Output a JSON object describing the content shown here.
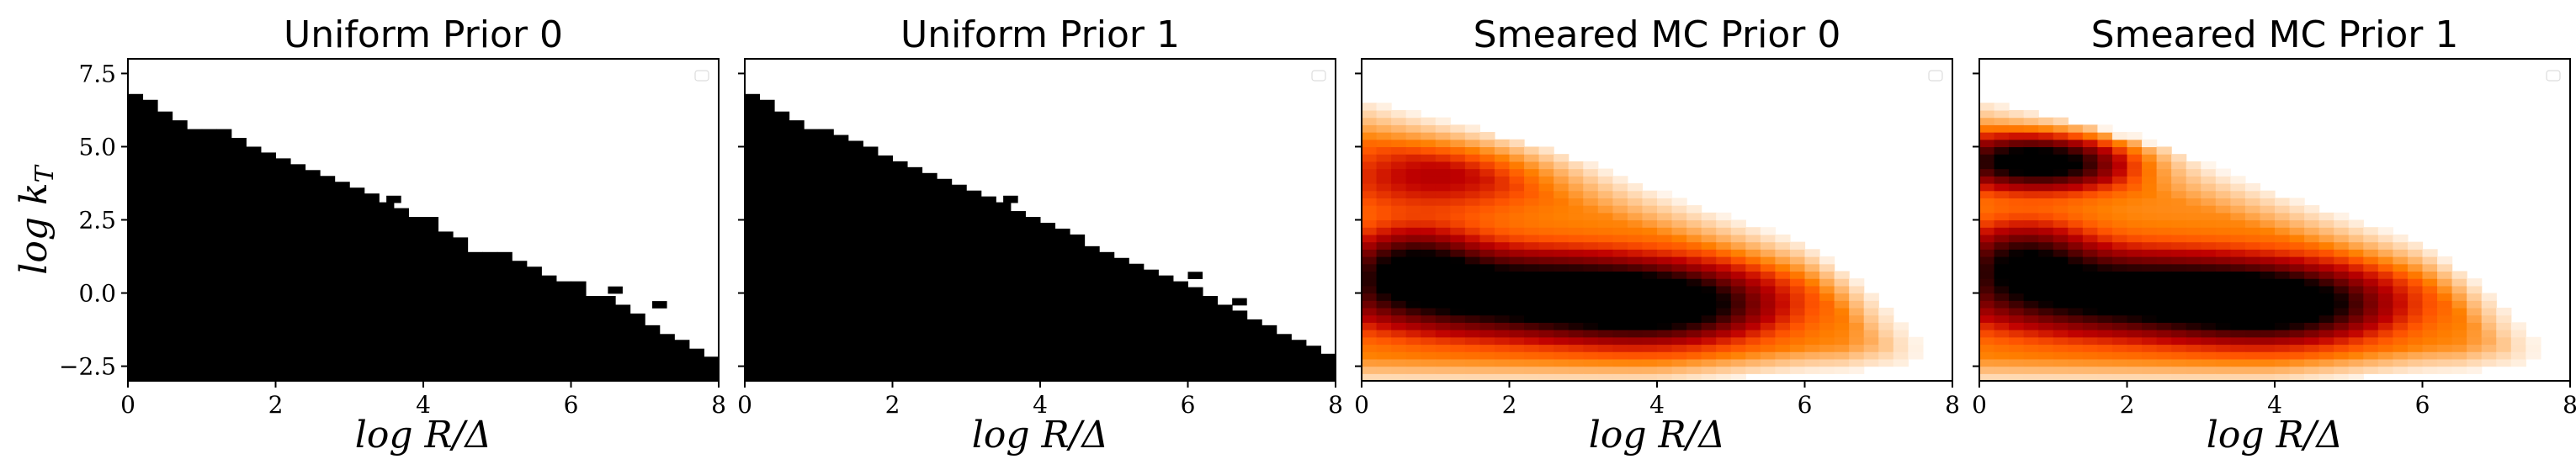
{
  "figure": {
    "ylabel": "log k_T",
    "xlabel": "log R/Δ"
  },
  "chart_data": [
    {
      "type": "heatmap",
      "title": "Uniform Prior 0",
      "xlabel": "log R/Δ",
      "ylabel": "log k_T",
      "xlim": [
        0,
        8
      ],
      "ylim": [
        -3.0,
        8.0
      ],
      "xticks": [
        0,
        2,
        4,
        6,
        8
      ],
      "yticks": [
        -2.5,
        0.0,
        2.5,
        5.0,
        7.5
      ],
      "colormap": "binary",
      "grid": false,
      "mode": "boundary",
      "boundary": {
        "x": [
          0,
          0.2,
          0.4,
          0.6,
          0.8,
          1.0,
          1.2,
          1.4,
          1.6,
          1.8,
          2.0,
          2.2,
          2.4,
          2.6,
          2.8,
          3.0,
          3.2,
          3.4,
          3.6,
          3.8,
          4.0,
          4.2,
          4.4,
          4.6,
          4.8,
          5.0,
          5.2,
          5.4,
          5.6,
          5.8,
          6.0,
          6.2,
          6.4,
          6.6,
          6.8,
          7.0,
          7.2,
          7.4,
          7.6,
          7.8
        ],
        "y": [
          6.8,
          6.6,
          6.2,
          5.9,
          5.6,
          5.6,
          5.6,
          5.3,
          5.0,
          4.8,
          4.6,
          4.4,
          4.2,
          4.0,
          3.8,
          3.6,
          3.4,
          3.1,
          2.9,
          2.6,
          2.6,
          2.1,
          1.9,
          1.4,
          1.4,
          1.4,
          1.1,
          0.9,
          0.6,
          0.4,
          0.4,
          -0.1,
          -0.1,
          -0.4,
          -0.7,
          -1.1,
          -1.4,
          -1.6,
          -1.9,
          -2.2
        ]
      },
      "islands": [
        [
          1.7,
          4.5
        ],
        [
          3.0,
          3.2
        ],
        [
          3.5,
          3.2
        ],
        [
          6.5,
          0.1
        ],
        [
          7.1,
          -0.4
        ],
        [
          7.8,
          -2.3
        ]
      ]
    },
    {
      "type": "heatmap",
      "title": "Uniform Prior 1",
      "xlabel": "log R/Δ",
      "ylabel": "log k_T",
      "xlim": [
        0,
        8
      ],
      "ylim": [
        -3.0,
        8.0
      ],
      "xticks": [
        0,
        2,
        4,
        6,
        8
      ],
      "yticks": [
        -2.5,
        0.0,
        2.5,
        5.0,
        7.5
      ],
      "colormap": "binary",
      "grid": false,
      "mode": "boundary",
      "boundary": {
        "x": [
          0,
          0.2,
          0.4,
          0.6,
          0.8,
          1.0,
          1.2,
          1.4,
          1.6,
          1.8,
          2.0,
          2.2,
          2.4,
          2.6,
          2.8,
          3.0,
          3.2,
          3.4,
          3.6,
          3.8,
          4.0,
          4.2,
          4.4,
          4.6,
          4.8,
          5.0,
          5.2,
          5.4,
          5.6,
          5.8,
          6.0,
          6.2,
          6.4,
          6.6,
          6.8,
          7.0,
          7.2,
          7.4,
          7.6,
          7.8
        ],
        "y": [
          6.8,
          6.6,
          6.2,
          5.9,
          5.6,
          5.6,
          5.4,
          5.2,
          5.0,
          4.7,
          4.5,
          4.3,
          4.1,
          3.9,
          3.7,
          3.5,
          3.3,
          3.1,
          2.8,
          2.6,
          2.4,
          2.2,
          2.0,
          1.6,
          1.4,
          1.2,
          1.0,
          0.8,
          0.6,
          0.4,
          0.2,
          -0.1,
          -0.4,
          -0.6,
          -0.9,
          -1.1,
          -1.4,
          -1.6,
          -1.8,
          -2.1
        ]
      },
      "islands": [
        [
          1.7,
          4.5
        ],
        [
          3.0,
          3.2
        ],
        [
          3.5,
          3.2
        ],
        [
          6.0,
          0.6
        ],
        [
          6.6,
          -0.3
        ],
        [
          7.8,
          -2.2
        ]
      ]
    },
    {
      "type": "heatmap",
      "title": "Smeared MC Prior 0",
      "xlabel": "log R/Δ",
      "ylabel": "log k_T",
      "xlim": [
        0,
        8
      ],
      "ylim": [
        -3.0,
        8.0
      ],
      "xticks": [
        0,
        2,
        4,
        6,
        8
      ],
      "yticks": [
        -2.5,
        0.0,
        2.5,
        5.0,
        7.5
      ],
      "colormap": "gist_heat_r",
      "grid": false,
      "mode": "density",
      "density": {
        "band_top": [
          [
            0,
            6.0
          ],
          [
            3,
            3.7
          ],
          [
            6,
            1.0
          ],
          [
            7.8,
            -2.4
          ]
        ],
        "band_bottom": [
          [
            0,
            -2.9
          ],
          [
            2,
            -2.9
          ],
          [
            4,
            -2.9
          ],
          [
            6,
            -2.5
          ],
          [
            7.5,
            -2.4
          ]
        ],
        "peaks": [
          {
            "x": 2.0,
            "y": 0.0,
            "sx": 1.5,
            "sy": 0.9,
            "amp": 1.0
          },
          {
            "x": 4.0,
            "y": -0.4,
            "sx": 1.0,
            "sy": 0.8,
            "amp": 0.9
          },
          {
            "x": 0.7,
            "y": 1.0,
            "sx": 0.6,
            "sy": 0.8,
            "amp": 0.6
          },
          {
            "x": 1.0,
            "y": 4.0,
            "sx": 1.0,
            "sy": 0.8,
            "amp": 0.3
          }
        ]
      }
    },
    {
      "type": "heatmap",
      "title": "Smeared MC Prior 1",
      "xlabel": "log R/Δ",
      "ylabel": "log k_T",
      "xlim": [
        0,
        8
      ],
      "ylim": [
        -3.0,
        8.0
      ],
      "xticks": [
        0,
        2,
        4,
        6,
        8
      ],
      "yticks": [
        -2.5,
        0.0,
        2.5,
        5.0,
        7.5
      ],
      "colormap": "gist_heat_r",
      "grid": false,
      "mode": "density",
      "density": {
        "band_top": [
          [
            0,
            6.0
          ],
          [
            3,
            3.7
          ],
          [
            6,
            1.0
          ],
          [
            7.8,
            -2.4
          ]
        ],
        "band_bottom": [
          [
            0,
            -2.9
          ],
          [
            2,
            -2.9
          ],
          [
            4,
            -2.9
          ],
          [
            6,
            -2.5
          ],
          [
            7.5,
            -2.4
          ]
        ],
        "peaks": [
          {
            "x": 0.8,
            "y": 4.5,
            "sx": 0.8,
            "sy": 0.6,
            "amp": 1.0
          },
          {
            "x": 2.0,
            "y": 0.0,
            "sx": 1.5,
            "sy": 0.9,
            "amp": 0.95
          },
          {
            "x": 4.0,
            "y": -0.4,
            "sx": 1.0,
            "sy": 0.8,
            "amp": 0.9
          },
          {
            "x": 0.6,
            "y": 1.2,
            "sx": 0.6,
            "sy": 0.8,
            "amp": 0.6
          }
        ]
      }
    }
  ]
}
